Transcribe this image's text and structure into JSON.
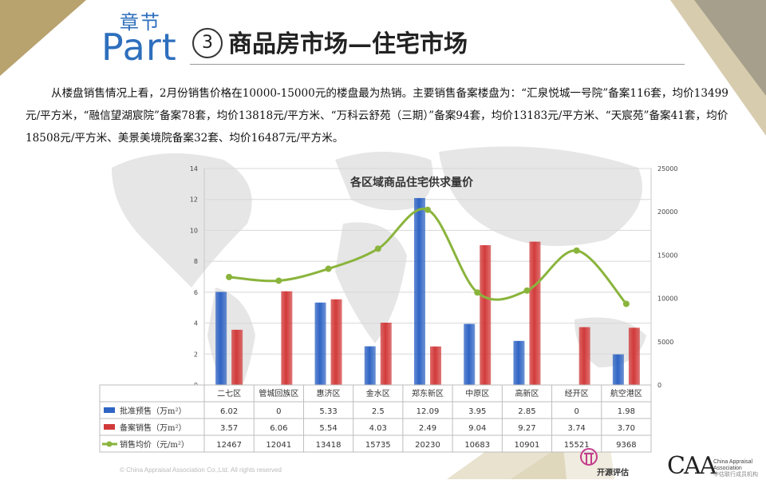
{
  "header": {
    "chapter": "章节",
    "part": "Part",
    "number": "3",
    "title": "商品房市场—住宅市场"
  },
  "paragraph": "从楼盘销售情况上看，2月份销售价格在10000-15000元的楼盘最为热销。主要销售备案楼盘为：“汇泉悦城一号院”备案116套，均价13499元/平方米，“融信望湖宸院”备案78套，均价13818元/平方米、“万科云舒苑（三期）”备案94套，均价13183元/平方米、“天宸苑”备案41套，均价18508元/平方米、美景美境院备案32套、均价16487元/平方米。",
  "chart_data": {
    "type": "bar",
    "title": "各区域商品住宅供求量价",
    "categories": [
      "二七区",
      "管城回族区",
      "惠济区",
      "金水区",
      "郑东新区",
      "中原区",
      "高新区",
      "经开区",
      "航空港区"
    ],
    "series": [
      {
        "name": "批准预售（万m²）",
        "type": "bar",
        "color": "#2f64c4",
        "values": [
          6.02,
          0,
          5.33,
          2.5,
          12.09,
          3.95,
          2.85,
          0,
          1.98
        ],
        "labels": [
          "6.02",
          "0",
          "5.33",
          "2.5",
          "12.09",
          "3.95",
          "2.85",
          "0",
          "1.98"
        ]
      },
      {
        "name": "备案销售（万m²）",
        "type": "bar",
        "color": "#d23a3a",
        "values": [
          3.57,
          6.06,
          5.54,
          4.03,
          2.49,
          9.04,
          9.27,
          3.74,
          3.7
        ],
        "labels": [
          "3.57",
          "6.06",
          "5.54",
          "4.03",
          "2.49",
          "9.04",
          "9.27",
          "3.74",
          "3.70"
        ]
      },
      {
        "name": "销售均价（元/m²）",
        "type": "line",
        "color": "#8ab43c",
        "values": [
          12467,
          12041,
          13418,
          15735,
          20230,
          10683,
          10901,
          15521,
          9368
        ],
        "labels": [
          "12467",
          "12041",
          "13418",
          "15735",
          "20230",
          "10683",
          "10901",
          "15521",
          "9368"
        ]
      }
    ],
    "y_left": {
      "min": 0,
      "max": 14,
      "ticks": [
        "0",
        "2",
        "4",
        "6",
        "8",
        "10",
        "12",
        "14"
      ]
    },
    "y_right": {
      "min": 0,
      "max": 25000,
      "ticks": [
        "0",
        "5000",
        "10000",
        "15000",
        "20000",
        "25000"
      ]
    },
    "grid": true,
    "legend": "data-table"
  },
  "footer": {
    "copyright": "© China Appraisal Association Co.,Ltd. All rights reserved",
    "logo1_text": "开源评估",
    "caa_mark": "CAA",
    "caa_line1": "China Appraisal",
    "caa_line2": "Association",
    "caa_line3": "中估联行成员机构"
  }
}
